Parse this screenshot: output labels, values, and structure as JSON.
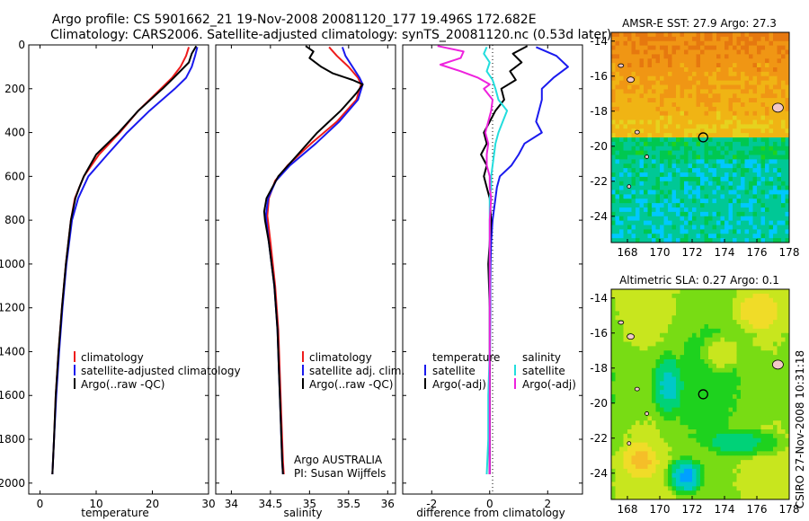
{
  "header": {
    "line1": "Argo profile: CS 5901662_21 19-Nov-2008 20081120_177 19.496S 172.682E",
    "line2": "Climatology: CARS2006. Satellite-adjusted climatology: synTS_20081120.nc (0.53d later)"
  },
  "credit": "CSIRO 27-Nov-2008 10:31:18",
  "chart_data": [
    {
      "type": "line",
      "id": "temperature",
      "xlabel": "temperature",
      "ylabel": "",
      "xlim": [
        -2,
        30
      ],
      "ylim": [
        2050,
        0
      ],
      "xticks": [
        0,
        10,
        20,
        30
      ],
      "yticks": [
        0,
        200,
        400,
        600,
        800,
        1000,
        1200,
        1400,
        1600,
        1800,
        2000
      ],
      "legend": {
        "position": "lower-center",
        "entries": [
          "climatology",
          "satellite-adjusted climatology",
          "Argo(..raw -QC)"
        ]
      },
      "series": [
        {
          "name": "climatology",
          "color": "#ee1c1c",
          "depth": [
            10,
            50,
            100,
            150,
            200,
            300,
            400,
            500,
            600,
            700,
            800,
            1000,
            1200,
            1400,
            1600,
            1800,
            1960
          ],
          "values": [
            26.5,
            26.0,
            25.0,
            23.5,
            21.5,
            17.5,
            14.2,
            10.5,
            7.8,
            6.2,
            5.5,
            4.6,
            3.9,
            3.3,
            2.8,
            2.5,
            2.2
          ]
        },
        {
          "name": "satellite-adjusted climatology",
          "color": "#1a1aee",
          "depth": [
            10,
            50,
            100,
            150,
            200,
            300,
            400,
            500,
            600,
            700,
            800,
            1000,
            1200,
            1400,
            1600,
            1800,
            1960
          ],
          "values": [
            28.0,
            27.6,
            27.0,
            26.0,
            24.0,
            19.5,
            15.5,
            12.0,
            8.6,
            6.8,
            5.7,
            4.7,
            4.0,
            3.4,
            2.9,
            2.5,
            2.2
          ]
        },
        {
          "name": "Argo(..raw -QC)",
          "color": "#000000",
          "depth": [
            5,
            40,
            80,
            150,
            200,
            300,
            400,
            500,
            600,
            650,
            700,
            800,
            1000,
            1200,
            1400,
            1600,
            1800,
            1960
          ],
          "values": [
            27.8,
            27.0,
            26.5,
            23.8,
            21.8,
            17.5,
            14.0,
            10.0,
            7.8,
            7.0,
            6.3,
            5.5,
            4.6,
            3.9,
            3.3,
            2.8,
            2.5,
            2.2
          ]
        }
      ]
    },
    {
      "type": "line",
      "id": "salinity",
      "xlabel": "salinity",
      "ylabel": "",
      "xlim": [
        33.8,
        36.1
      ],
      "ylim": [
        2050,
        0
      ],
      "xticks": [
        34,
        34.5,
        35,
        35.5,
        36
      ],
      "yticks": [
        0,
        200,
        400,
        600,
        800,
        1000,
        1200,
        1400,
        1600,
        1800,
        2000
      ],
      "legend": {
        "position": "lower-center",
        "entries": [
          "climatology",
          "satellite adj. clim.",
          "Argo(..raw -QC)"
        ]
      },
      "annotation": [
        "Argo AUSTRALIA",
        "PI: Susan Wijffels"
      ],
      "series": [
        {
          "name": "climatology",
          "color": "#ee1c1c",
          "depth": [
            10,
            50,
            100,
            150,
            180,
            250,
            350,
            450,
            550,
            620,
            700,
            780,
            900,
            1100,
            1300,
            1500,
            1700,
            1900,
            1960
          ],
          "values": [
            35.25,
            35.35,
            35.5,
            35.62,
            35.66,
            35.6,
            35.35,
            35.02,
            34.72,
            34.56,
            34.48,
            34.46,
            34.5,
            34.56,
            34.6,
            34.62,
            34.64,
            34.66,
            34.67
          ]
        },
        {
          "name": "satellite adj. clim.",
          "color": "#1a1aee",
          "depth": [
            10,
            50,
            100,
            150,
            180,
            250,
            350,
            450,
            550,
            620,
            700,
            780,
            900,
            1100,
            1300,
            1500,
            1700,
            1900,
            1960
          ],
          "values": [
            35.42,
            35.46,
            35.55,
            35.64,
            35.68,
            35.62,
            35.38,
            35.08,
            34.75,
            34.57,
            34.47,
            34.44,
            34.48,
            34.55,
            34.59,
            34.61,
            34.63,
            34.65,
            34.66
          ]
        },
        {
          "name": "Argo(..raw -QC)",
          "color": "#000000",
          "depth": [
            5,
            30,
            60,
            100,
            130,
            160,
            180,
            220,
            300,
            400,
            500,
            600,
            700,
            760,
            800,
            900,
            1100,
            1300,
            1500,
            1700,
            1900,
            1960
          ],
          "values": [
            34.95,
            35.05,
            35.0,
            35.15,
            35.3,
            35.55,
            35.68,
            35.6,
            35.4,
            35.1,
            34.85,
            34.6,
            34.45,
            34.42,
            34.43,
            34.48,
            34.55,
            34.59,
            34.61,
            34.63,
            34.65,
            34.66
          ]
        }
      ]
    },
    {
      "type": "line",
      "id": "difference",
      "xlabel": "difference from climatology",
      "ylabel": "",
      "xlim": [
        -3,
        3.2
      ],
      "ylim": [
        2050,
        0
      ],
      "xticks": [
        -2,
        0,
        2
      ],
      "yticks": [
        0,
        200,
        400,
        600,
        800,
        1000,
        1200,
        1400,
        1600,
        1800,
        2000
      ],
      "legend": {
        "position": "lower-center",
        "groups": [
          {
            "title": "temperature",
            "entries": [
              "satellite",
              "Argo(-adj)"
            ]
          },
          {
            "title": "salinity",
            "entries": [
              "satellite",
              "Argo(-adj)"
            ]
          }
        ]
      },
      "series": [
        {
          "name": "temperature satellite",
          "color": "#1a1aee",
          "depth": [
            10,
            50,
            100,
            150,
            200,
            250,
            300,
            350,
            400,
            450,
            500,
            550,
            600,
            650,
            700,
            750,
            800,
            900,
            1000,
            1100,
            1200,
            1400,
            1600,
            1800,
            1960
          ],
          "values": [
            1.6,
            2.3,
            2.7,
            2.2,
            1.8,
            1.8,
            1.7,
            1.6,
            1.8,
            1.2,
            1.0,
            0.75,
            0.35,
            0.25,
            0.2,
            0.15,
            0.1,
            0.05,
            0.03,
            0.02,
            0.02,
            0.01,
            0.0,
            0.0,
            0.0
          ]
        },
        {
          "name": "temperature Argo(-adj)",
          "color": "#000000",
          "depth": [
            5,
            40,
            80,
            120,
            160,
            200,
            250,
            300,
            350,
            400,
            450,
            500,
            550,
            600,
            650,
            700,
            800,
            900,
            1000,
            1200,
            1400,
            1600,
            1800,
            1960
          ],
          "values": [
            1.3,
            0.8,
            1.1,
            0.7,
            0.9,
            0.4,
            0.5,
            0.2,
            0.0,
            -0.2,
            -0.1,
            -0.3,
            -0.1,
            -0.2,
            -0.1,
            0.0,
            0.05,
            0.0,
            -0.05,
            0.0,
            0.0,
            0.0,
            0.0,
            0.0
          ]
        },
        {
          "name": "salinity satellite",
          "color": "#22dddd",
          "depth": [
            10,
            40,
            80,
            120,
            160,
            200,
            250,
            300,
            350,
            400,
            450,
            500,
            550,
            600,
            650,
            700,
            800,
            1000,
            1200,
            1400,
            1600,
            1800,
            1960
          ],
          "values": [
            -0.1,
            -0.2,
            0.0,
            -0.1,
            0.1,
            0.2,
            0.3,
            0.6,
            0.45,
            0.3,
            0.2,
            0.15,
            0.1,
            0.05,
            0.05,
            0.0,
            0.0,
            0.0,
            0.0,
            0.0,
            -0.05,
            -0.05,
            -0.1
          ]
        },
        {
          "name": "salinity Argo(-adj)",
          "color": "#ee22dd",
          "depth": [
            5,
            30,
            60,
            90,
            120,
            150,
            180,
            200,
            250,
            300,
            350,
            400,
            450,
            500,
            550,
            600,
            650,
            700,
            800,
            900,
            1000,
            1200,
            1400,
            1600,
            1800,
            1960
          ],
          "values": [
            -1.8,
            -0.9,
            -1.0,
            -1.7,
            -1.0,
            -0.4,
            0.0,
            -0.2,
            0.1,
            0.05,
            -0.05,
            -0.15,
            -0.05,
            -0.1,
            -0.1,
            0.0,
            0.0,
            0.05,
            0.0,
            0.0,
            0.0,
            0.0,
            0.0,
            0.0,
            0.0,
            0.0
          ]
        }
      ]
    },
    {
      "type": "heatmap",
      "id": "amsre-sst",
      "title": "AMSR-E SST: 27.9 Argo: 27.3",
      "xlim": [
        167,
        178
      ],
      "ylim": [
        -25.5,
        -13.5
      ],
      "xticks": [
        168,
        170,
        172,
        174,
        176,
        178
      ],
      "yticks": [
        -14,
        -16,
        -18,
        -20,
        -22,
        -24
      ],
      "marker": {
        "lon": 172.682,
        "lat": -19.496
      },
      "colors": [
        "#00c8ff",
        "#00c896",
        "#00c850",
        "#1ed21e",
        "#5ad214",
        "#c8e614",
        "#e6d21e",
        "#f0b414",
        "#f09614",
        "#e6780f"
      ],
      "value_range": [
        24,
        29
      ]
    },
    {
      "type": "heatmap",
      "id": "altimetric-sla",
      "title": "Altimetric SLA: 0.27 Argo: 0.1",
      "xlim": [
        167,
        178
      ],
      "ylim": [
        -25.5,
        -13.5
      ],
      "xticks": [
        168,
        170,
        172,
        174,
        176,
        178
      ],
      "yticks": [
        -14,
        -16,
        -18,
        -20,
        -22,
        -24
      ],
      "marker": {
        "lon": 172.682,
        "lat": -19.496
      },
      "colors": [
        "#00a0ff",
        "#00c8c8",
        "#00d278",
        "#1ed21e",
        "#78dc14",
        "#c8e61e",
        "#f0dc28",
        "#f5be28",
        "#f0a028"
      ],
      "value_range": [
        0,
        0.4
      ]
    }
  ]
}
